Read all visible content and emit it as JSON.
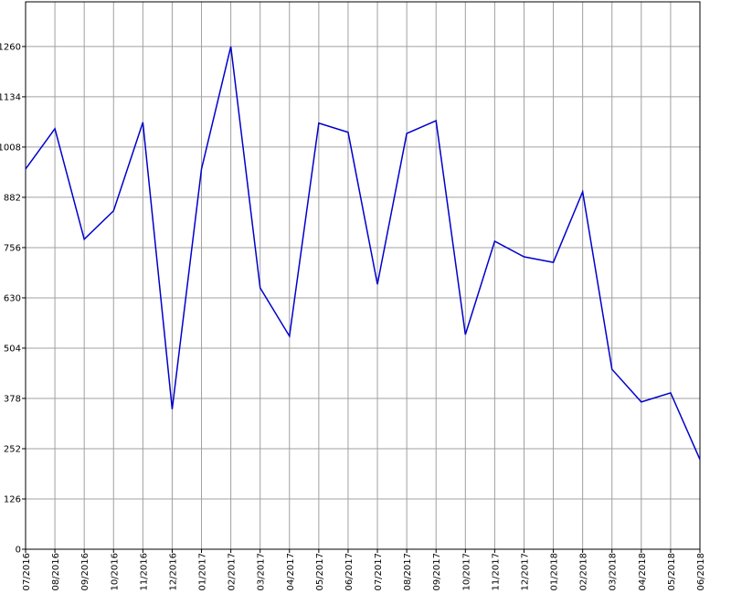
{
  "chart_data": {
    "type": "line",
    "categories": [
      "07/2016",
      "08/2016",
      "09/2016",
      "10/2016",
      "11/2016",
      "12/2016",
      "01/2017",
      "02/2017",
      "03/2017",
      "04/2017",
      "05/2017",
      "06/2017",
      "07/2017",
      "08/2017",
      "09/2017",
      "10/2017",
      "11/2017",
      "12/2017",
      "01/2018",
      "02/2018",
      "03/2018",
      "04/2018",
      "05/2018",
      "06/2018"
    ],
    "values": [
      953,
      1054,
      777,
      848,
      1070,
      351,
      953,
      1260,
      655,
      534,
      1068,
      1045,
      664,
      1042,
      1074,
      538,
      772,
      733,
      719,
      896,
      451,
      369,
      392,
      225
    ],
    "color": "#0000cc",
    "ylim": [
      0,
      1372
    ],
    "yticks": [
      0,
      126,
      252,
      378,
      504,
      630,
      756,
      882,
      1008,
      1134,
      1260
    ],
    "grid": true
  }
}
